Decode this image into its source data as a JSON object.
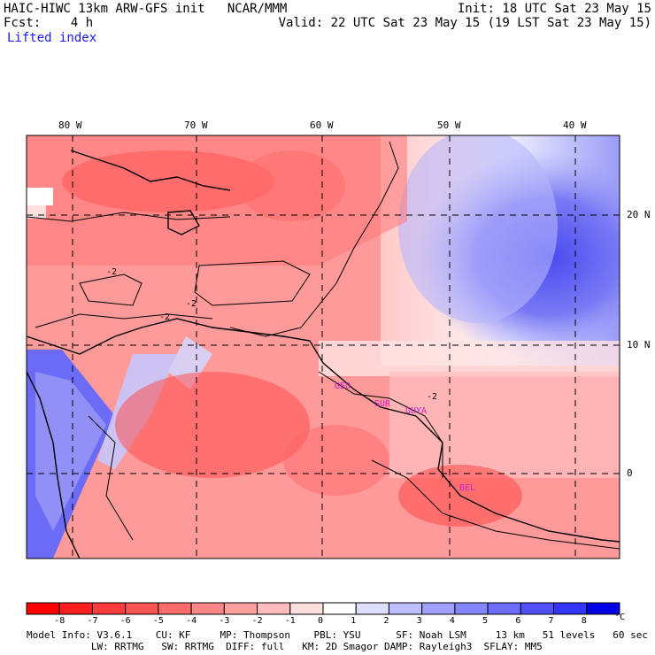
{
  "header": {
    "left_line1": "HAIC-HIWC 13km ARW-GFS init   NCAR/MMM",
    "left_line2": "Fcst:    4 h",
    "field": "Lifted index",
    "init": "Init: 18 UTC Sat 23 May 15",
    "valid": "Valid: 22 UTC Sat 23 May 15 (19 LST Sat 23 May 15)"
  },
  "map": {
    "lon_labels": [
      "80 W",
      "70 W",
      "60 W",
      "50 W",
      "40 W"
    ],
    "lat_labels": [
      "20 N",
      "10 N",
      "0"
    ],
    "contour_labels": [
      "-2",
      "-2",
      "-2",
      "-2"
    ],
    "stations": [
      "GEO",
      "SUR",
      "GUYA",
      "BEL"
    ]
  },
  "colorbar": {
    "unit": "°C",
    "ticks": [
      "-8",
      "-7",
      "-6",
      "-5",
      "-4",
      "-3",
      "-2",
      "-1",
      "0",
      "1",
      "2",
      "3",
      "4",
      "5",
      "6",
      "7",
      "8"
    ],
    "colors": [
      "#ff0000",
      "#ff1f1f",
      "#ff3b3b",
      "#ff5454",
      "#ff6c6c",
      "#ff8686",
      "#ffa0a0",
      "#ffbdbd",
      "#ffdede",
      "#ffffff",
      "#dedeff",
      "#bdbdff",
      "#a0a0ff",
      "#8686ff",
      "#6c6cff",
      "#5050ff",
      "#3434ff",
      "#0000e6"
    ]
  },
  "footer": {
    "line1": "Model Info: V3.6.1    CU: KF     MP: Thompson    PBL: YSU      SF: Noah LSM     13 km   51 levels   60 sec",
    "line2": "           LW: RRTMG   SW: RRTMG  DIFF: full   KM: 2D Smagor DAMP: Rayleigh3  SFLAY: MM5"
  }
}
